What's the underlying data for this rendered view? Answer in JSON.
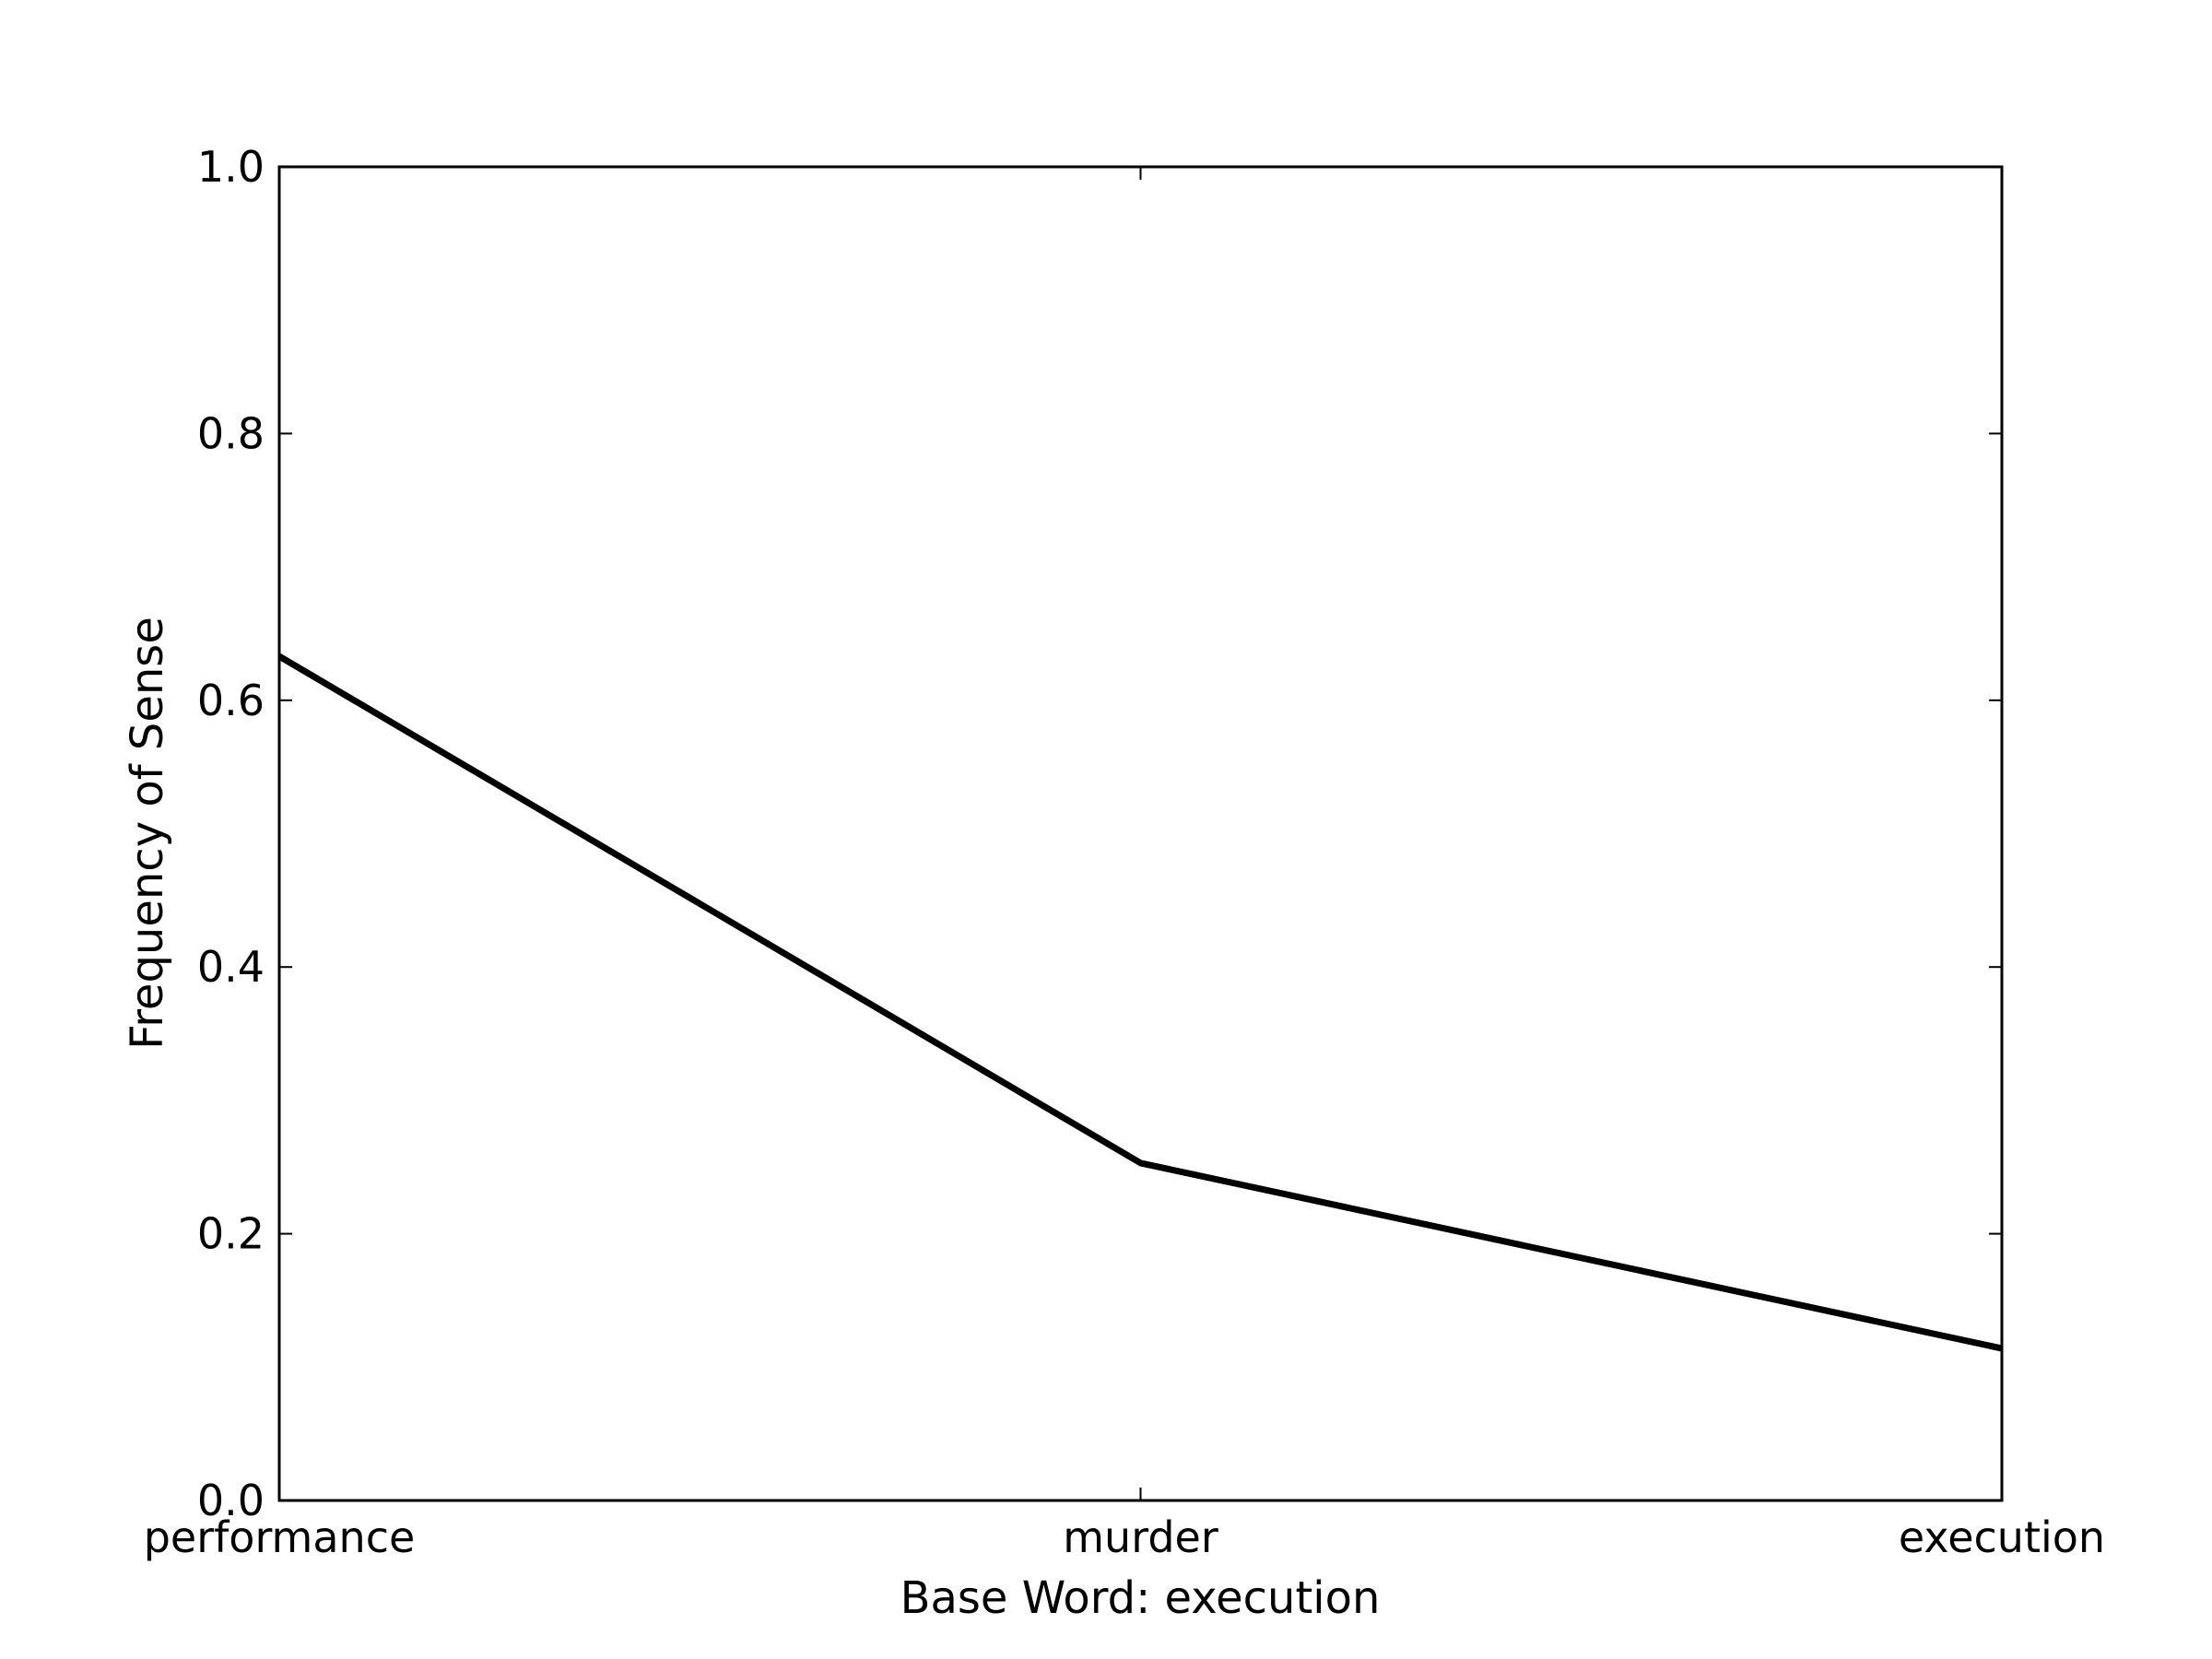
{
  "chart_data": {
    "type": "line",
    "title": "",
    "xlabel": "Base Word: execution",
    "ylabel": "Frequency of Sense",
    "categories": [
      "performance",
      "murder",
      "execution"
    ],
    "values": [
      0.633,
      0.253,
      0.114
    ],
    "ylim": [
      0,
      1
    ],
    "yticks": [
      "0.0",
      "0.2",
      "0.4",
      "0.6",
      "0.8",
      "1.0"
    ],
    "grid": false,
    "line_color": "#000000"
  }
}
